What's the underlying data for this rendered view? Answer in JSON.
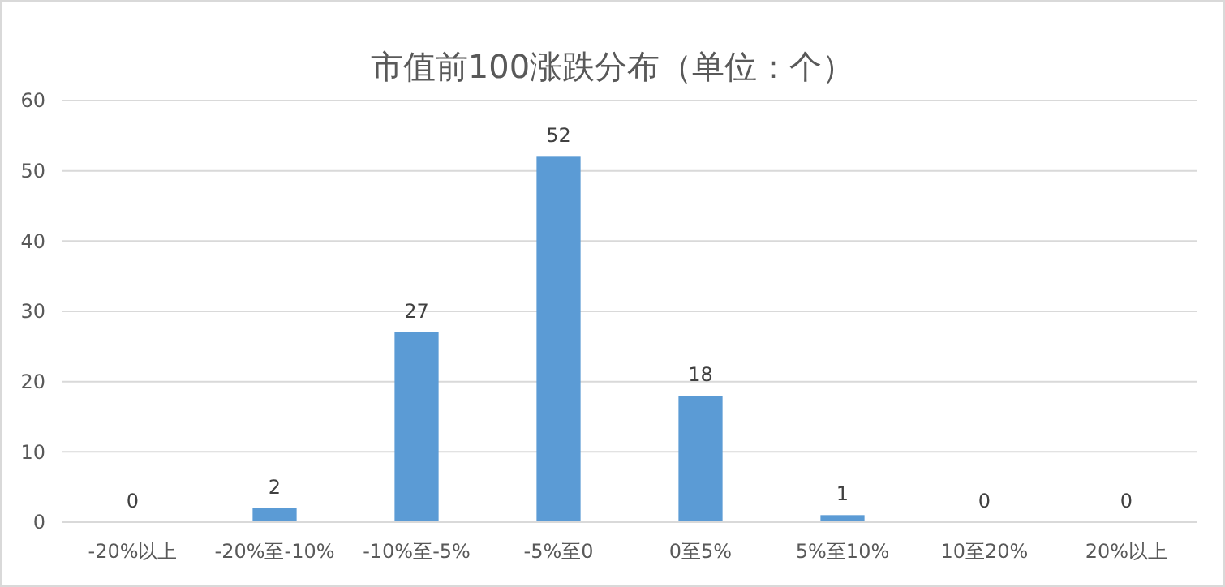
{
  "chart_data": {
    "type": "bar",
    "title": "市值前100涨跌分布（单位：个）",
    "categories": [
      "-20%以上",
      "-20%至-10%",
      "-10%至-5%",
      "-5%至0",
      "0至5%",
      "5%至10%",
      "10至20%",
      "20%以上"
    ],
    "values": [
      0,
      2,
      27,
      52,
      18,
      1,
      0,
      0
    ],
    "color": "#5b9bd5",
    "ylim": [
      0,
      60
    ],
    "yticks": [
      0,
      10,
      20,
      30,
      40,
      50,
      60
    ],
    "grid": "y",
    "data_labels": true
  }
}
